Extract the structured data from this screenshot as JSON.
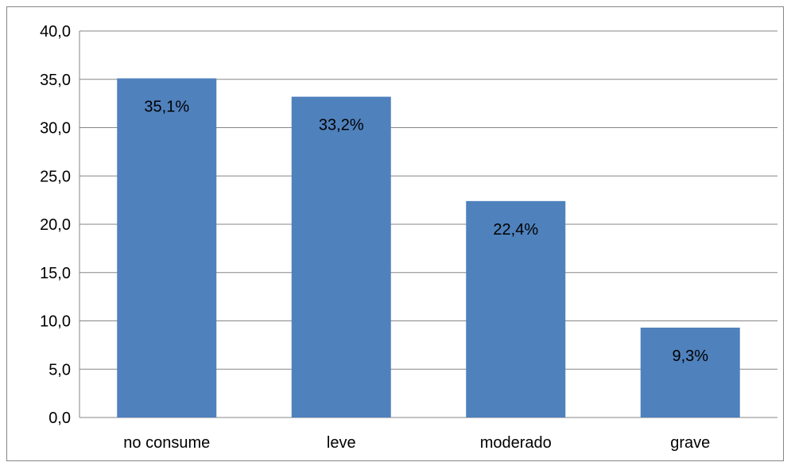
{
  "chart_data": {
    "type": "bar",
    "title": "",
    "xlabel": "",
    "ylabel": "",
    "categories": [
      "no consume",
      "leve",
      "moderado",
      "grave"
    ],
    "values": [
      35.1,
      33.2,
      22.4,
      9.3
    ],
    "data_labels": [
      "35,1%",
      "33,2%",
      "22,4%",
      "9,3%"
    ],
    "y_ticks": [
      0,
      5,
      10,
      15,
      20,
      25,
      30,
      35,
      40
    ],
    "y_tick_labels": [
      "0,0",
      "5,0",
      "10,0",
      "15,0",
      "20,0",
      "25,0",
      "30,0",
      "35,0",
      "40,0"
    ],
    "ylim": [
      0,
      40
    ],
    "grid": true,
    "legend": "none",
    "colors": {
      "bar": "#4f81bd",
      "grid": "#868686",
      "axis": "#868686"
    }
  }
}
